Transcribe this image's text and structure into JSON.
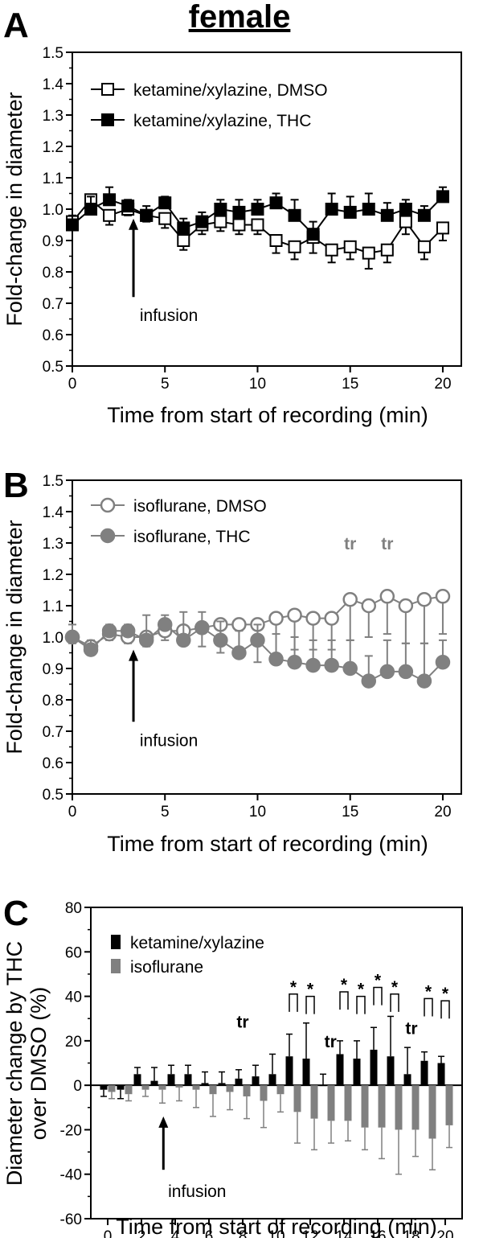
{
  "figure": {
    "title": "female",
    "panels": [
      {
        "label": "A",
        "arrow_text": "infusion"
      },
      {
        "label": "B",
        "arrow_text": "infusion"
      },
      {
        "label": "C",
        "arrow_text": "infusion"
      }
    ]
  },
  "colors": {
    "black": "#000000",
    "gray": "#808080",
    "white": "#ffffff"
  },
  "chart_data": [
    {
      "type": "line",
      "panel": "A",
      "xlabel": "Time from start of recording (min)",
      "ylabel": "Fold-change in diameter",
      "xlim": [
        0,
        21
      ],
      "ylim": [
        0.5,
        1.5
      ],
      "xticks": [
        0,
        5,
        10,
        15,
        20
      ],
      "yticks": [
        0.5,
        0.6,
        0.7,
        0.8,
        0.9,
        1.0,
        1.1,
        1.2,
        1.3,
        1.4,
        1.5
      ],
      "legend": "top-left",
      "annotations": [
        {
          "text": "infusion",
          "x": 3.3,
          "arrow_from": 0.72,
          "arrow_to": 0.97
        }
      ],
      "x": [
        0,
        1,
        2,
        3,
        4,
        5,
        6,
        7,
        8,
        9,
        10,
        11,
        12,
        13,
        14,
        15,
        16,
        17,
        18,
        19,
        20
      ],
      "series": [
        {
          "name": "ketamine/xylazine, DMSO",
          "marker": "square-open",
          "color": "#000000",
          "values": [
            0.96,
            1.03,
            0.98,
            1.0,
            0.98,
            0.97,
            0.9,
            0.95,
            0.96,
            0.95,
            0.95,
            0.9,
            0.88,
            0.91,
            0.87,
            0.88,
            0.86,
            0.87,
            0.96,
            0.88,
            0.94
          ],
          "error": [
            0.02,
            0.03,
            0.03,
            0.02,
            0.02,
            0.03,
            0.03,
            0.03,
            0.03,
            0.03,
            0.03,
            0.04,
            0.04,
            0.05,
            0.04,
            0.04,
            0.05,
            0.04,
            0.04,
            0.04,
            0.04
          ]
        },
        {
          "name": "ketamine/xylazine, THC",
          "marker": "square-filled",
          "color": "#000000",
          "values": [
            0.95,
            1.0,
            1.03,
            1.01,
            0.98,
            1.02,
            0.94,
            0.96,
            1.0,
            0.99,
            1.0,
            1.02,
            0.98,
            0.92,
            1.0,
            0.99,
            1.0,
            0.98,
            1.0,
            0.98,
            1.04
          ],
          "error": [
            0.03,
            0.04,
            0.04,
            0.02,
            0.03,
            0.02,
            0.03,
            0.03,
            0.03,
            0.04,
            0.03,
            0.03,
            0.05,
            0.04,
            0.05,
            0.05,
            0.05,
            0.04,
            0.03,
            0.03,
            0.03
          ]
        }
      ]
    },
    {
      "type": "line",
      "panel": "B",
      "xlabel": "Time from start of recording (min)",
      "ylabel": "Fold-change in diameter",
      "xlim": [
        0,
        21
      ],
      "ylim": [
        0.5,
        1.5
      ],
      "xticks": [
        0,
        5,
        10,
        15,
        20
      ],
      "yticks": [
        0.5,
        0.6,
        0.7,
        0.8,
        0.9,
        1.0,
        1.1,
        1.2,
        1.3,
        1.4,
        1.5
      ],
      "legend": "top-left",
      "annotations": [
        {
          "text": "infusion",
          "x": 3.3,
          "arrow_from": 0.73,
          "arrow_to": 0.96
        },
        {
          "text": "tr",
          "x": 15,
          "y": 1.28
        },
        {
          "text": "tr",
          "x": 17,
          "y": 1.28
        }
      ],
      "x": [
        0,
        1,
        2,
        3,
        4,
        5,
        6,
        7,
        8,
        9,
        10,
        11,
        12,
        13,
        14,
        15,
        16,
        17,
        18,
        19,
        20
      ],
      "series": [
        {
          "name": "isoflurane, DMSO",
          "marker": "circle-open",
          "color": "#808080",
          "values": [
            1.0,
            0.97,
            1.01,
            1.0,
            1.0,
            1.02,
            1.02,
            1.03,
            1.04,
            1.04,
            1.04,
            1.06,
            1.07,
            1.06,
            1.06,
            1.12,
            1.1,
            1.13,
            1.1,
            1.12,
            1.13
          ],
          "error": [
            0.02,
            0.02,
            0.02,
            0.02,
            0.03,
            0.03,
            0.04,
            0.06,
            0.09,
            0.1,
            0.12,
            0.12,
            0.11,
            0.1,
            0.1,
            0.13,
            0.1,
            0.12,
            0.12,
            0.14,
            0.12
          ]
        },
        {
          "name": "isoflurane, THC",
          "marker": "circle-filled",
          "color": "#808080",
          "values": [
            1.0,
            0.96,
            1.02,
            1.02,
            0.99,
            1.04,
            0.99,
            1.03,
            0.99,
            0.95,
            0.99,
            0.93,
            0.92,
            0.91,
            0.91,
            0.9,
            0.86,
            0.89,
            0.89,
            0.86,
            0.92
          ],
          "error": [
            0.04,
            0.03,
            0.02,
            0.02,
            0.08,
            0.03,
            0.09,
            0.05,
            0.06,
            0.07,
            0.05,
            0.08,
            0.08,
            0.08,
            0.08,
            0.09,
            0.08,
            0.1,
            0.09,
            0.12,
            0.07
          ]
        }
      ]
    },
    {
      "type": "bar",
      "panel": "C",
      "xlabel": "Time from start of recording (min)",
      "ylabel": "Diameter change by THC over DMSO (%)",
      "ylabel_lines": [
        "Diameter change by THC",
        "over DMSO (%)"
      ],
      "xlim": [
        -1,
        21
      ],
      "ylim": [
        -60,
        80
      ],
      "xticks": [
        0,
        2,
        4,
        6,
        8,
        10,
        12,
        14,
        16,
        18,
        20
      ],
      "yticks": [
        -60,
        -40,
        -20,
        0,
        20,
        40,
        60,
        80
      ],
      "legend": "top-left",
      "annotations": [
        {
          "text": "infusion",
          "x": 3.3,
          "arrow_from": -38,
          "arrow_to": -14
        },
        {
          "text": "tr",
          "x": 8,
          "y": 26
        },
        {
          "text": "tr",
          "x": 13.2,
          "y": 17
        },
        {
          "text": "tr",
          "x": 18,
          "y": 23
        },
        {
          "text": "*",
          "pairs": [
            11,
            12,
            14,
            15,
            16,
            17,
            19,
            20
          ]
        }
      ],
      "categories": [
        0,
        1,
        2,
        3,
        4,
        5,
        6,
        7,
        8,
        9,
        10,
        11,
        12,
        13,
        14,
        15,
        16,
        17,
        18,
        19,
        20
      ],
      "series": [
        {
          "name": "ketamine/xylazine",
          "color": "#000000",
          "values": [
            -2,
            -2,
            5,
            2,
            5,
            5,
            1,
            1,
            3,
            4,
            5,
            13,
            12,
            0,
            14,
            12,
            16,
            13,
            5,
            11,
            10
          ],
          "error": [
            3,
            4,
            3,
            6,
            4,
            4,
            5,
            5,
            4,
            5,
            9,
            10,
            16,
            5,
            6,
            8,
            10,
            18,
            12,
            4,
            3
          ]
        },
        {
          "name": "isoflurane",
          "color": "#808080",
          "values": [
            -3,
            -4,
            -2,
            -2,
            -1,
            -2,
            -4,
            -3,
            -5,
            -7,
            -4,
            -12,
            -15,
            -16,
            -16,
            -19,
            -19,
            -20,
            -20,
            -24,
            -18
          ],
          "error": [
            3,
            3,
            3,
            6,
            6,
            8,
            10,
            8,
            10,
            12,
            8,
            14,
            14,
            10,
            9,
            10,
            14,
            20,
            12,
            14,
            10
          ]
        }
      ]
    }
  ]
}
